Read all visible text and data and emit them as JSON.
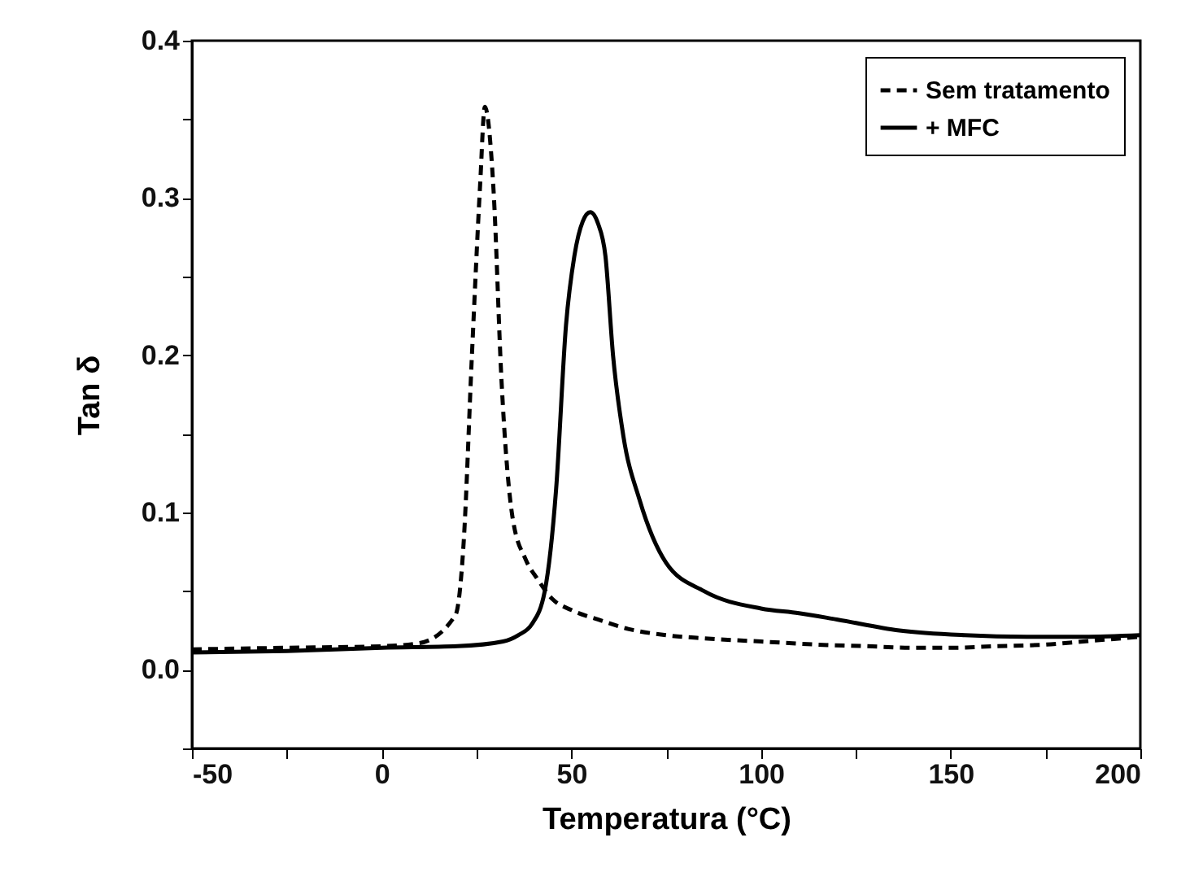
{
  "chart_data": {
    "type": "line",
    "xlabel": "Temperatura (°C)",
    "ylabel": "Tan δ",
    "xlim": [
      -50,
      200
    ],
    "ylim": [
      -0.05,
      0.4
    ],
    "xticks": [
      -50,
      {
        "value": -25,
        "label": null
      },
      0,
      {
        "value": 25,
        "label": null
      },
      50,
      {
        "value": 75,
        "label": null
      },
      100,
      {
        "value": 125,
        "label": null
      },
      150,
      {
        "value": 175,
        "label": null
      },
      200
    ],
    "yticks": [
      {
        "value": -0.05,
        "label": null
      },
      {
        "value": 0,
        "label": "0.0"
      },
      {
        "value": 0.05,
        "label": null
      },
      0.1,
      {
        "value": 0.15,
        "label": null
      },
      0.2,
      {
        "value": 0.25,
        "label": null
      },
      0.3,
      {
        "value": 0.35,
        "label": null
      },
      0.4
    ],
    "grid": false,
    "legend": "top right",
    "series": [
      {
        "name": "Sem tratamento",
        "color": "#000000",
        "line_style": "dashed",
        "x": [
          -50,
          -25,
          0,
          10,
          19.5,
          21.6,
          23.8,
          26,
          27.2,
          29.5,
          31.6,
          34.5,
          38,
          41,
          45,
          50,
          57,
          65,
          75,
          85,
          100,
          115,
          128,
          140,
          150,
          162,
          175,
          185,
          200
        ],
        "values": [
          0.013,
          0.014,
          0.015,
          0.017,
          0.035,
          0.08,
          0.2,
          0.31,
          0.358,
          0.305,
          0.184,
          0.097,
          0.07,
          0.058,
          0.045,
          0.038,
          0.032,
          0.026,
          0.022,
          0.02,
          0.018,
          0.016,
          0.015,
          0.014,
          0.014,
          0.015,
          0.016,
          0.018,
          0.021
        ]
      },
      {
        "name": "+ MFC",
        "color": "#000000",
        "line_style": "solid",
        "x": [
          -50,
          -25,
          0,
          20,
          32,
          36,
          39.6,
          43,
          46,
          48.6,
          50.8,
          53,
          55,
          57,
          59,
          61,
          63.7,
          68,
          75,
          85,
          100,
          110,
          120,
          136.5,
          153.7,
          170,
          185,
          200
        ],
        "values": [
          0.011,
          0.012,
          0.014,
          0.015,
          0.018,
          0.022,
          0.029,
          0.05,
          0.115,
          0.219,
          0.263,
          0.285,
          0.291,
          0.284,
          0.263,
          0.2,
          0.149,
          0.108,
          0.068,
          0.05,
          0.039,
          0.036,
          0.032,
          0.025,
          0.022,
          0.021,
          0.021,
          0.022
        ]
      }
    ]
  }
}
